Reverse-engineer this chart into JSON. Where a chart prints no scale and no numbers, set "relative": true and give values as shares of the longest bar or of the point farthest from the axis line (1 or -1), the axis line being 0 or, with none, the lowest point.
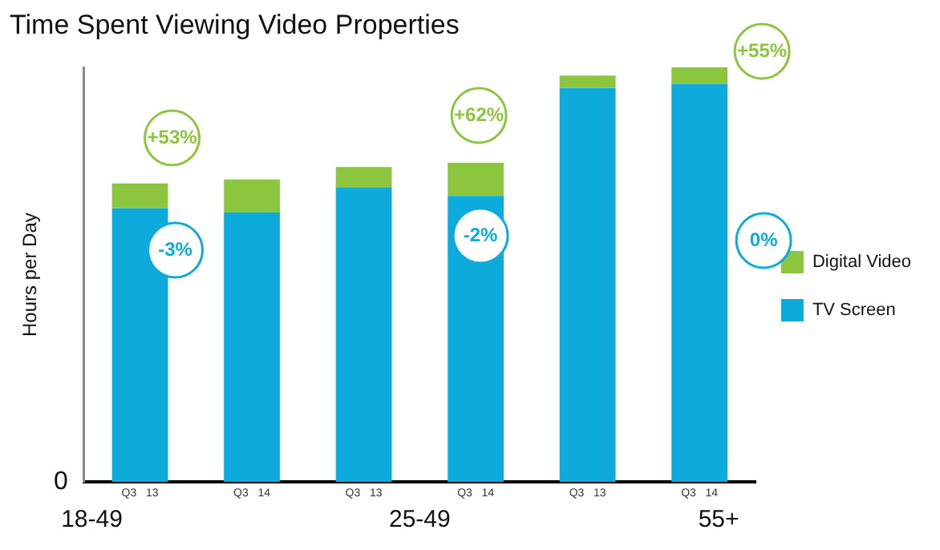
{
  "chart_data": {
    "type": "bar",
    "title": "Time Spent Viewing Video Properties",
    "ylabel": "Hours per Day",
    "relative": true,
    "stacked": true,
    "legend": "right",
    "categories": [
      "Q3   13",
      "Q3   14",
      "Q3   13",
      "Q3   14",
      "Q3   13",
      "Q3   14"
    ],
    "series": [
      {
        "name": "TV Screen",
        "color": "#0dabdb",
        "values": [
          0.66,
          0.65,
          0.71,
          0.69,
          0.95,
          0.96
        ]
      },
      {
        "name": "Digital Video",
        "color": "#8cc63f",
        "values": [
          0.06,
          0.08,
          0.05,
          0.08,
          0.03,
          0.04
        ]
      }
    ],
    "annotations": [
      "0",
      "+53%",
      "-3%",
      "+62%",
      "-2%",
      "+55%",
      "0%",
      "18-49",
      "25-49",
      "55+"
    ]
  }
}
